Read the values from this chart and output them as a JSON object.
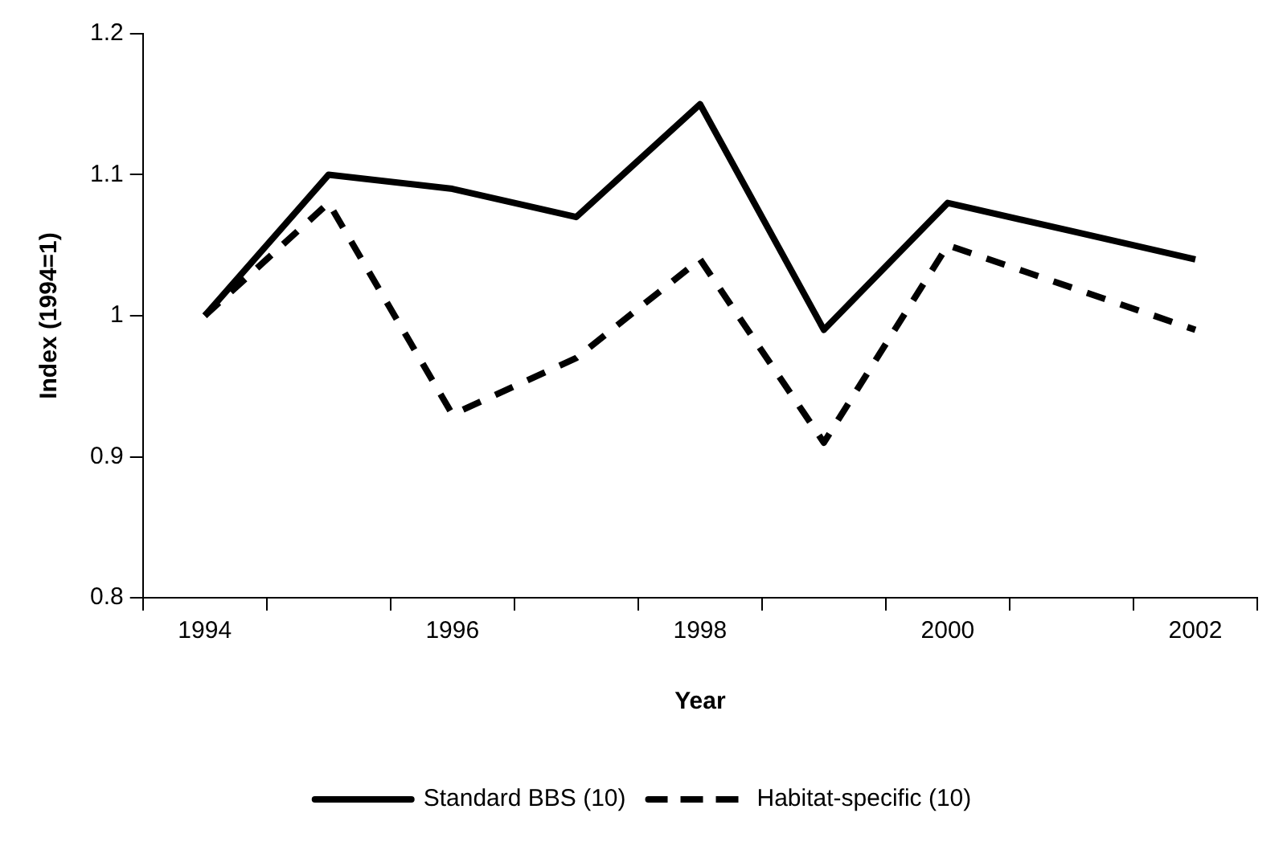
{
  "chart_data": {
    "type": "line",
    "xlabel": "Year",
    "ylabel": "Index (1994=1)",
    "categories": [
      "1994",
      null,
      "1996",
      null,
      "1998",
      null,
      "2000",
      null,
      "2002"
    ],
    "series": [
      {
        "name": "Standard BBS (10)",
        "color": "#000000",
        "line_style": "solid",
        "values": [
          1.0,
          1.1,
          1.09,
          1.07,
          1.15,
          0.99,
          1.08,
          1.06,
          1.04
        ]
      },
      {
        "name": "Habitat-specific (10)",
        "color": "#000000",
        "line_style": "dashed",
        "values": [
          1.0,
          1.08,
          0.93,
          0.97,
          1.04,
          0.91,
          1.05,
          1.02,
          0.99
        ]
      }
    ],
    "ylim": [
      0.8,
      1.2
    ],
    "yticks": [
      0.8,
      0.9,
      1,
      1.1,
      1.2
    ],
    "grid": false,
    "legend": "bottom",
    "marker": "none"
  }
}
